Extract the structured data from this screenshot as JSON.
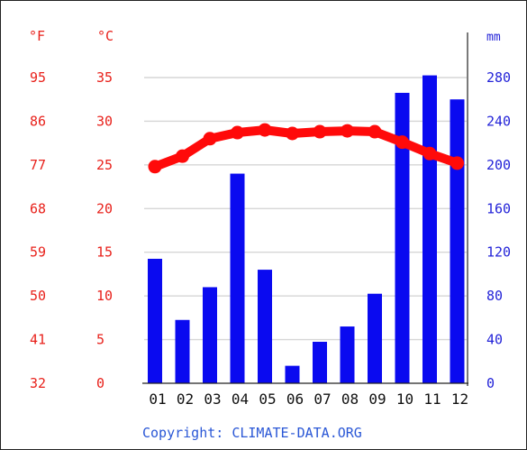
{
  "chart_data": {
    "type": "bar",
    "categories": [
      "01",
      "02",
      "03",
      "04",
      "05",
      "06",
      "07",
      "08",
      "09",
      "10",
      "11",
      "12"
    ],
    "series": [
      {
        "type": "bar",
        "axis": "right",
        "color": "#0a0af0",
        "values": [
          114,
          58,
          88,
          192,
          104,
          16,
          38,
          52,
          82,
          266,
          282,
          260
        ]
      },
      {
        "type": "line",
        "axis": "left",
        "color": "#ff0a0a",
        "values": [
          24.8,
          26.0,
          28.0,
          28.7,
          29.0,
          28.6,
          28.8,
          28.9,
          28.8,
          27.6,
          26.3,
          25.2
        ]
      }
    ],
    "left_axis_f": {
      "unit_label": "°F",
      "ticks": [
        "95",
        "86",
        "77",
        "68",
        "59",
        "50",
        "41",
        "32"
      ]
    },
    "left_axis_c": {
      "unit_label": "°C",
      "ticks": [
        "35",
        "30",
        "25",
        "20",
        "15",
        "10",
        "5",
        "0"
      ],
      "range": [
        0,
        35
      ]
    },
    "right_axis": {
      "unit_label": "mm",
      "ticks": [
        "280",
        "240",
        "200",
        "160",
        "120",
        "80",
        "40",
        "0"
      ],
      "range": [
        0,
        280
      ]
    },
    "copyright": "Copyright: CLIMATE-DATA.ORG",
    "colors": {
      "temp_axis_text": "#e8211b",
      "precip_axis_text": "#2424d8",
      "copyright_text": "#2a57d6"
    }
  }
}
